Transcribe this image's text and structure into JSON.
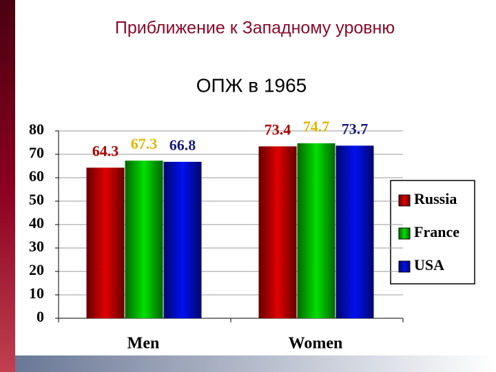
{
  "chart_data": {
    "type": "bar",
    "title": "Приближение к Западному уровню",
    "subtitle": "ОПЖ в 1965",
    "categories": [
      "Men",
      "Women"
    ],
    "series": [
      {
        "name": "Russia",
        "color": "#e00000",
        "values": [
          64.3,
          73.4
        ],
        "label_color": "#b00000"
      },
      {
        "name": "France",
        "color": "#00e000",
        "values": [
          67.3,
          74.7
        ],
        "label_color": "#e0b800"
      },
      {
        "name": "USA",
        "color": "#0010f0",
        "values": [
          66.8,
          73.7
        ],
        "label_color": "#1a1a80"
      }
    ],
    "ylim": [
      0,
      80
    ],
    "yticks": [
      0,
      10,
      20,
      30,
      40,
      50,
      60,
      70,
      80
    ],
    "grid": true,
    "legend": "right"
  }
}
